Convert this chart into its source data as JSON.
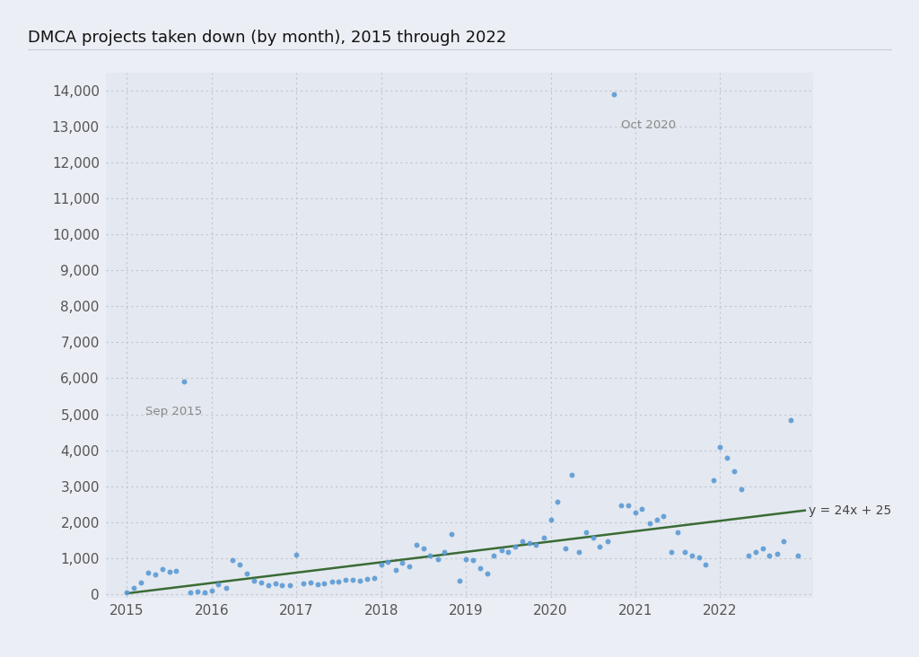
{
  "title": "DMCA projects taken down (by month), 2015 through 2022",
  "background_color": "#e8edf4",
  "plot_bg_color": "#e4e8f0",
  "outer_bg_color": "#eceef5",
  "scatter_color": "#5b9bd5",
  "regression_color": "#3a6b35",
  "regression_label": "y = 24x + 25",
  "outlier_oct2020_x": 2020.75,
  "outlier_oct2020_y": 13900,
  "outlier_sep2015_x": 2015.67,
  "outlier_sep2015_y": 5900,
  "annotation_color": "#888888",
  "scatter_points": [
    [
      2015.0,
      50
    ],
    [
      2015.08,
      180
    ],
    [
      2015.17,
      320
    ],
    [
      2015.25,
      600
    ],
    [
      2015.33,
      550
    ],
    [
      2015.42,
      700
    ],
    [
      2015.5,
      620
    ],
    [
      2015.58,
      660
    ],
    [
      2015.67,
      5900
    ],
    [
      2015.75,
      50
    ],
    [
      2015.83,
      70
    ],
    [
      2015.92,
      45
    ],
    [
      2016.0,
      90
    ],
    [
      2016.08,
      280
    ],
    [
      2016.17,
      180
    ],
    [
      2016.25,
      950
    ],
    [
      2016.33,
      820
    ],
    [
      2016.42,
      570
    ],
    [
      2016.5,
      380
    ],
    [
      2016.58,
      330
    ],
    [
      2016.67,
      240
    ],
    [
      2016.75,
      290
    ],
    [
      2016.83,
      260
    ],
    [
      2016.92,
      250
    ],
    [
      2017.0,
      1100
    ],
    [
      2017.08,
      310
    ],
    [
      2017.17,
      330
    ],
    [
      2017.25,
      270
    ],
    [
      2017.33,
      310
    ],
    [
      2017.42,
      340
    ],
    [
      2017.5,
      360
    ],
    [
      2017.58,
      410
    ],
    [
      2017.67,
      400
    ],
    [
      2017.75,
      380
    ],
    [
      2017.83,
      430
    ],
    [
      2017.92,
      460
    ],
    [
      2018.0,
      830
    ],
    [
      2018.08,
      890
    ],
    [
      2018.17,
      680
    ],
    [
      2018.25,
      870
    ],
    [
      2018.33,
      780
    ],
    [
      2018.42,
      1380
    ],
    [
      2018.5,
      1280
    ],
    [
      2018.58,
      1080
    ],
    [
      2018.67,
      980
    ],
    [
      2018.75,
      1180
    ],
    [
      2018.83,
      1680
    ],
    [
      2018.92,
      380
    ],
    [
      2019.0,
      980
    ],
    [
      2019.08,
      960
    ],
    [
      2019.17,
      730
    ],
    [
      2019.25,
      580
    ],
    [
      2019.33,
      1080
    ],
    [
      2019.42,
      1230
    ],
    [
      2019.5,
      1180
    ],
    [
      2019.58,
      1330
    ],
    [
      2019.67,
      1480
    ],
    [
      2019.75,
      1430
    ],
    [
      2019.83,
      1380
    ],
    [
      2019.92,
      1580
    ],
    [
      2020.0,
      2080
    ],
    [
      2020.08,
      2580
    ],
    [
      2020.17,
      1280
    ],
    [
      2020.25,
      3330
    ],
    [
      2020.33,
      1180
    ],
    [
      2020.42,
      1730
    ],
    [
      2020.5,
      1580
    ],
    [
      2020.58,
      1330
    ],
    [
      2020.67,
      1480
    ],
    [
      2020.75,
      13900
    ],
    [
      2020.83,
      2480
    ],
    [
      2020.92,
      2480
    ],
    [
      2021.0,
      2280
    ],
    [
      2021.08,
      2380
    ],
    [
      2021.17,
      1980
    ],
    [
      2021.25,
      2080
    ],
    [
      2021.33,
      2180
    ],
    [
      2021.42,
      1180
    ],
    [
      2021.5,
      1730
    ],
    [
      2021.58,
      1180
    ],
    [
      2021.67,
      1080
    ],
    [
      2021.75,
      1030
    ],
    [
      2021.83,
      830
    ],
    [
      2021.92,
      3180
    ],
    [
      2022.0,
      4080
    ],
    [
      2022.08,
      3780
    ],
    [
      2022.17,
      3430
    ],
    [
      2022.25,
      2930
    ],
    [
      2022.33,
      1080
    ],
    [
      2022.42,
      1180
    ],
    [
      2022.5,
      1280
    ],
    [
      2022.58,
      1080
    ],
    [
      2022.67,
      1130
    ],
    [
      2022.75,
      1480
    ],
    [
      2022.83,
      4830
    ],
    [
      2022.92,
      1080
    ]
  ],
  "regression_slope": 24,
  "regression_intercept": 25,
  "regression_x_ref": 2015.0,
  "xlim": [
    2014.75,
    2023.1
  ],
  "ylim": [
    -100,
    14500
  ],
  "yticks": [
    0,
    1000,
    2000,
    3000,
    4000,
    5000,
    6000,
    7000,
    8000,
    9000,
    10000,
    11000,
    12000,
    13000,
    14000
  ],
  "xticks": [
    2015,
    2016,
    2017,
    2018,
    2019,
    2020,
    2021,
    2022
  ],
  "title_fontsize": 13,
  "tick_fontsize": 11,
  "grid_color": "#c0c4cc",
  "regression_end_x": 2023.0
}
